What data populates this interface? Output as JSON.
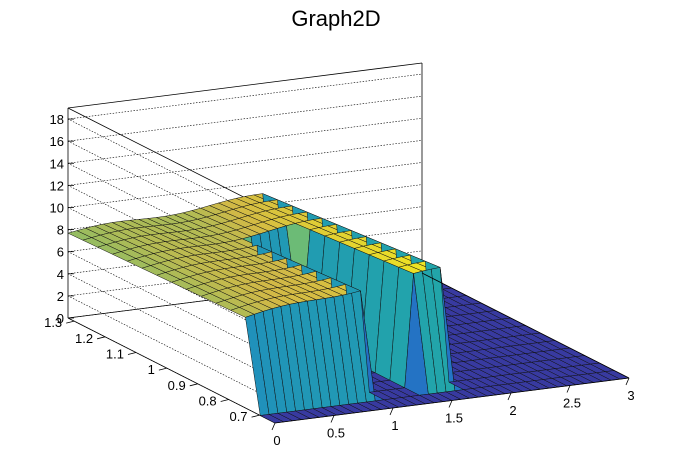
{
  "chart_data": {
    "type": "surface",
    "title": "Graph2D",
    "xlim": [
      0,
      3
    ],
    "ylim": [
      0.65,
      1.32
    ],
    "zlim": [
      0,
      19
    ],
    "x_ticks": [
      "0",
      "0.5",
      "1",
      "1.5",
      "2",
      "2.5",
      "3"
    ],
    "y_ticks": [
      "0.7",
      "0.8",
      "0.9",
      "1",
      "1.1",
      "1.2",
      "1.3"
    ],
    "z_ticks": [
      "0",
      "2",
      "4",
      "6",
      "8",
      "10",
      "12",
      "14",
      "16",
      "18"
    ],
    "grid": true,
    "plateau": {
      "x_range": [
        0.0,
        1.72
      ],
      "y_range": [
        0.72,
        1.32
      ],
      "z_min": 7,
      "z_max": 10.5,
      "hole": {
        "x_range": [
          1.0,
          1.42
        ],
        "y_range": [
          0.72,
          1.12
        ]
      }
    },
    "floor_value": 0
  }
}
